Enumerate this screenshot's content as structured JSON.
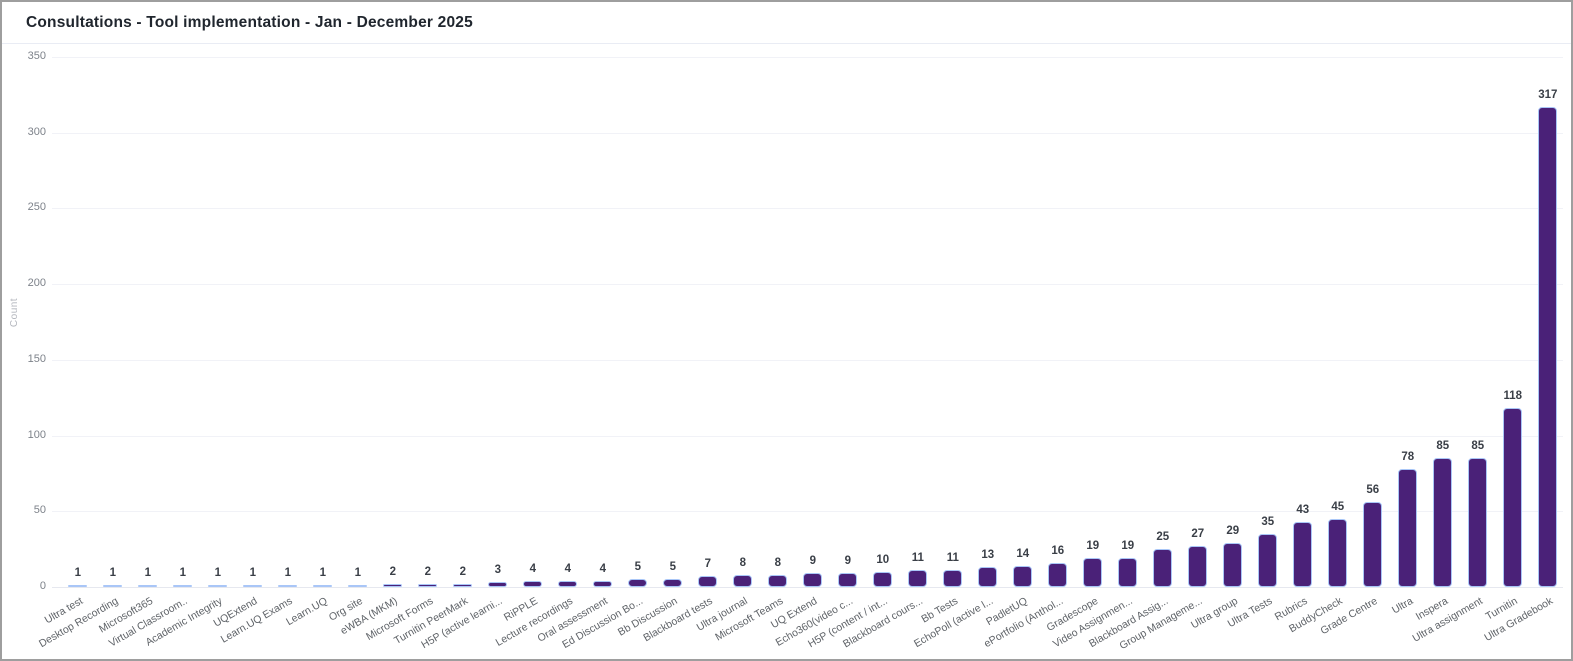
{
  "window": {
    "title": "Consultations - Tool implementation - Jan - December 2025"
  },
  "chart_data": {
    "type": "bar",
    "title": "Consultations - Tool implementation - Jan - December 2025",
    "xlabel": "",
    "ylabel": "Count",
    "ylim": [
      0,
      350
    ],
    "yticks": [
      0,
      50,
      100,
      150,
      200,
      250,
      300,
      350
    ],
    "grid": "horizontal-faint",
    "legend_position": "none",
    "bar_color": "#4a2178",
    "bar_stroke_color": "#a9c6f7",
    "value_label_color": "#3a3f47",
    "categories": [
      "Ultra test",
      "Desktop Recording",
      "Microsoft365",
      "Virtual Classroom..",
      "Academic Integrity",
      "UQExtend",
      "Learn.UQ Exams",
      "Learn.UQ",
      "Org site",
      "eWBA (MKM)",
      "Microsoft Forms",
      "Turnitin PeerMark",
      "H5P (active learni...",
      "RiPPLE",
      "Lecture recordings",
      "Oral assessment",
      "Ed Discussion Bo...",
      "Bb Discussion",
      "Blackboard tests",
      "Ultra journal",
      "Microsoft Teams",
      "UQ Extend",
      "Echo360(video c...",
      "H5P (content / int...",
      "Blackboard cours...",
      "Bb Tests",
      "EchoPoll (active l...",
      "PadletUQ",
      "ePortfolio (Anthol...",
      "Gradescope",
      "Video Assignmen...",
      "Blackboard Assig...",
      "Group Manageme...",
      "Ultra group",
      "Ultra Tests",
      "Rubrics",
      "BuddyCheck",
      "Grade Centre",
      "Ultra",
      "Inspera",
      "Ultra assignment",
      "Turnitin",
      "Ultra Gradebook"
    ],
    "values": [
      1,
      1,
      1,
      1,
      1,
      1,
      1,
      1,
      1,
      2,
      2,
      2,
      3,
      4,
      4,
      4,
      5,
      5,
      7,
      8,
      8,
      9,
      9,
      10,
      11,
      11,
      13,
      14,
      16,
      19,
      19,
      25,
      27,
      29,
      35,
      43,
      45,
      56,
      78,
      85,
      85,
      118,
      317
    ]
  }
}
